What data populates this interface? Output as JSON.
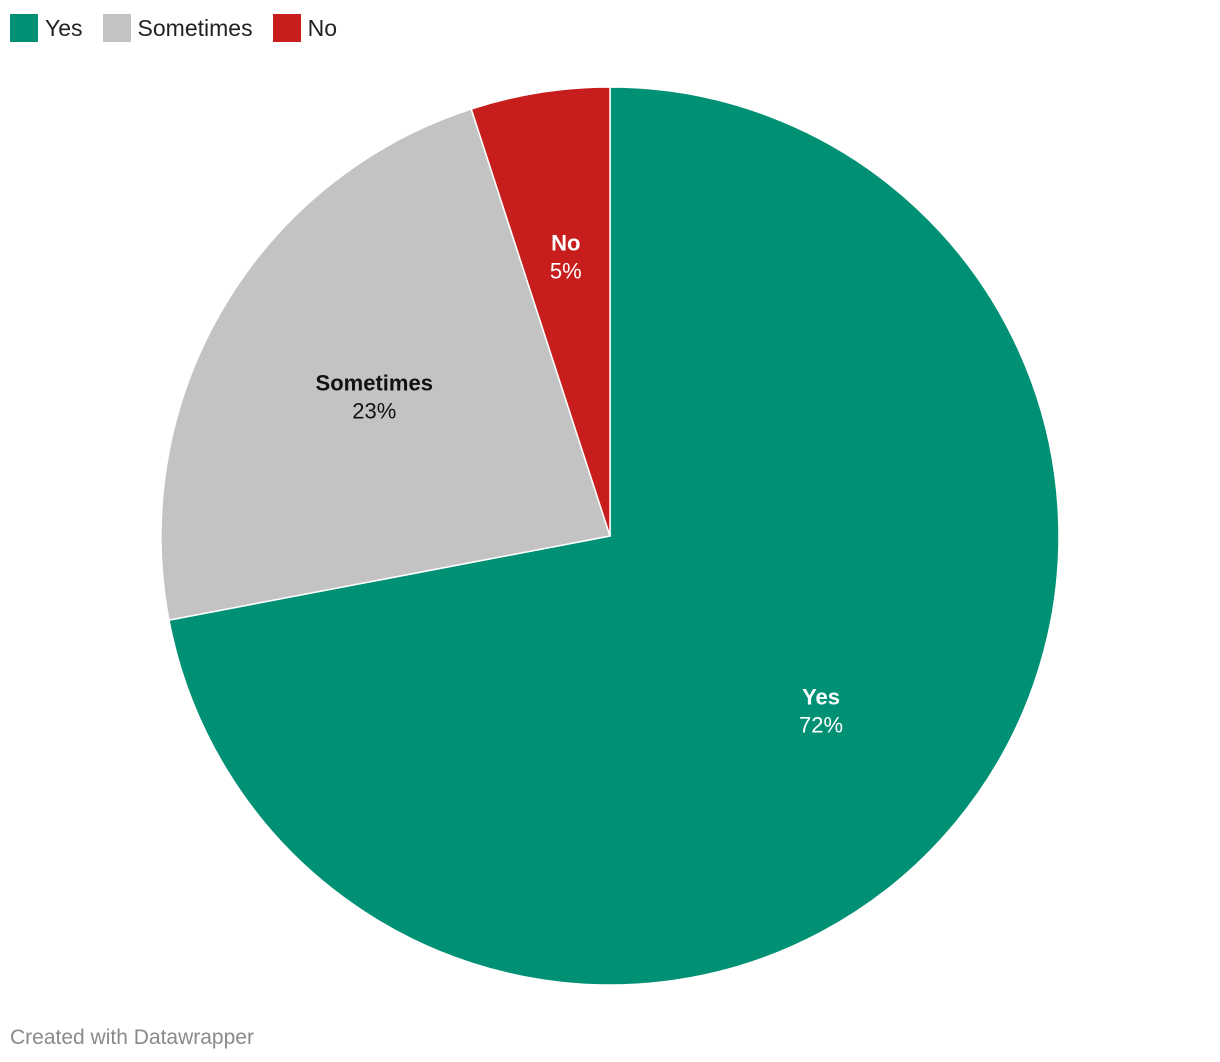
{
  "legend": [
    {
      "label": "Yes",
      "color": "#009175"
    },
    {
      "label": "Sometimes",
      "color": "#c3c3c3"
    },
    {
      "label": "No",
      "color": "#c71e1d"
    }
  ],
  "chart_data": {
    "type": "pie",
    "slices": [
      {
        "label": "Yes",
        "value": 72,
        "display": "72%",
        "color": "#009175",
        "label_color": "#ffffff"
      },
      {
        "label": "Sometimes",
        "value": 23,
        "display": "23%",
        "color": "#c3c3c3",
        "label_color": "#111111"
      },
      {
        "label": "No",
        "value": 5,
        "display": "5%",
        "color": "#c71e1d",
        "label_color": "#ffffff"
      }
    ],
    "legend_position": "top-left"
  },
  "footer": {
    "credit": "Created with Datawrapper"
  }
}
